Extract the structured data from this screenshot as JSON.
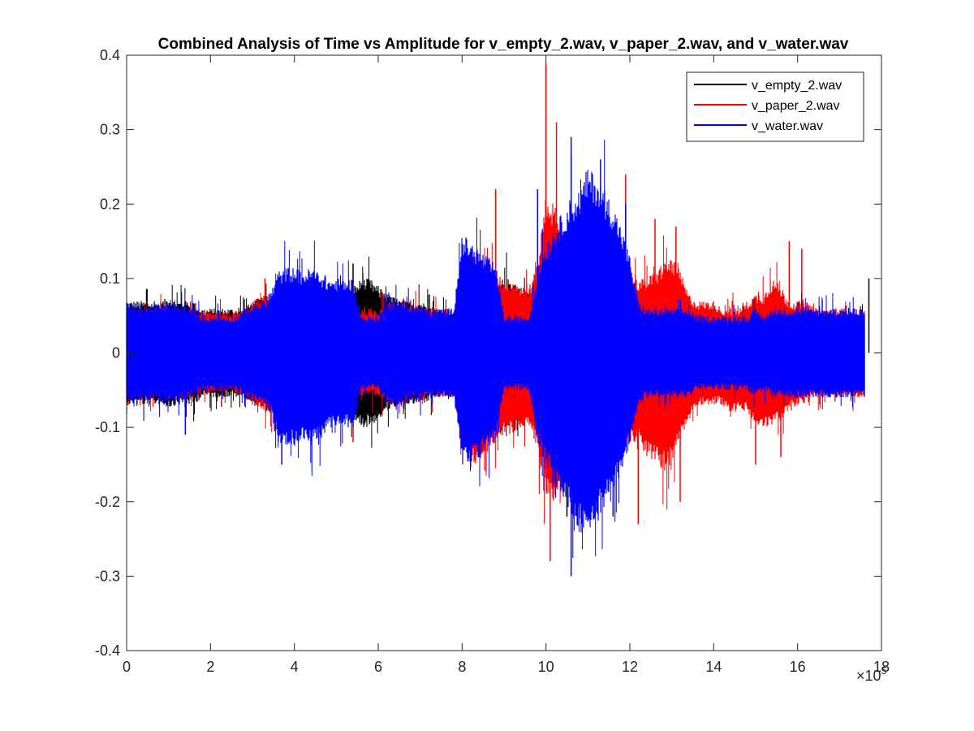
{
  "chart_data": {
    "type": "line",
    "title": "Combined Analysis of Time vs Amplitude for v_empty_2.wav, v_paper_2.wav, and v_water.wav",
    "xlabel": "",
    "ylabel": "",
    "xlim": [
      0,
      1800000
    ],
    "ylim": [
      -0.4,
      0.4
    ],
    "x_exponent_label": "×10",
    "x_exponent_power": "5",
    "x_ticks": [
      0,
      200000,
      400000,
      600000,
      800000,
      1000000,
      1200000,
      1400000,
      1600000,
      1800000
    ],
    "x_tick_labels": [
      "0",
      "2",
      "4",
      "6",
      "8",
      "10",
      "12",
      "14",
      "16",
      "18"
    ],
    "y_ticks": [
      -0.4,
      -0.3,
      -0.2,
      -0.1,
      0,
      0.1,
      0.2,
      0.3,
      0.4
    ],
    "y_tick_labels": [
      "-0.4",
      "-0.3",
      "-0.2",
      "-0.1",
      "0",
      "0.1",
      "0.2",
      "0.3",
      "0.4"
    ],
    "grid": false,
    "legend_position": "top-right",
    "x_sample_step": 20000,
    "series": [
      {
        "name": "v_empty_2.wav",
        "color": "#000000",
        "envelope": {
          "x": [
            0,
            20000,
            40000,
            60000,
            80000,
            100000,
            120000,
            140000,
            160000,
            180000,
            200000,
            220000,
            240000,
            260000,
            280000,
            300000,
            320000,
            340000,
            360000,
            380000,
            400000,
            420000,
            440000,
            460000,
            480000,
            500000,
            520000,
            540000,
            560000,
            580000,
            600000,
            620000,
            640000,
            660000,
            680000,
            700000,
            720000,
            740000,
            760000,
            780000,
            800000,
            820000,
            840000,
            860000,
            880000,
            900000,
            920000,
            940000,
            960000,
            980000,
            1000000,
            1020000,
            1040000,
            1060000,
            1080000,
            1100000,
            1120000,
            1140000,
            1160000,
            1180000,
            1200000,
            1220000,
            1240000,
            1260000,
            1280000,
            1300000,
            1320000,
            1340000,
            1360000,
            1380000,
            1400000,
            1420000,
            1440000,
            1460000,
            1480000,
            1500000,
            1520000,
            1540000,
            1560000,
            1580000,
            1600000,
            1620000,
            1640000,
            1660000,
            1680000,
            1700000,
            1720000,
            1740000,
            1760000
          ],
          "upper": [
            0.07,
            0.07,
            0.07,
            0.07,
            0.07,
            0.075,
            0.07,
            0.07,
            0.07,
            0.06,
            0.06,
            0.06,
            0.06,
            0.06,
            0.06,
            0.07,
            0.075,
            0.08,
            0.085,
            0.09,
            0.085,
            0.08,
            0.085,
            0.08,
            0.08,
            0.085,
            0.08,
            0.09,
            0.1,
            0.1,
            0.09,
            0.08,
            0.075,
            0.07,
            0.07,
            0.07,
            0.065,
            0.06,
            0.06,
            0.06,
            0.08,
            0.09,
            0.09,
            0.09,
            0.095,
            0.1,
            0.1,
            0.09,
            0.085,
            0.085,
            0.08,
            0.08,
            0.08,
            0.08,
            0.08,
            0.08,
            0.075,
            0.075,
            0.07,
            0.07,
            0.07,
            0.065,
            0.06,
            0.06,
            0.06,
            0.055,
            0.05,
            0.05,
            0.05,
            0.05,
            0.05,
            0.05,
            0.05,
            0.05,
            0.05,
            0.05,
            0.05,
            0.05,
            0.05,
            0.05,
            0.05,
            0.05,
            0.05,
            0.05,
            0.05,
            0.05,
            0.05,
            0.05,
            0.05
          ],
          "lower": [
            -0.07,
            -0.07,
            -0.07,
            -0.07,
            -0.07,
            -0.075,
            -0.07,
            -0.07,
            -0.07,
            -0.06,
            -0.06,
            -0.06,
            -0.06,
            -0.06,
            -0.06,
            -0.07,
            -0.075,
            -0.08,
            -0.085,
            -0.09,
            -0.085,
            -0.08,
            -0.085,
            -0.08,
            -0.08,
            -0.085,
            -0.085,
            -0.095,
            -0.1,
            -0.1,
            -0.09,
            -0.08,
            -0.075,
            -0.07,
            -0.07,
            -0.07,
            -0.065,
            -0.06,
            -0.06,
            -0.06,
            -0.08,
            -0.09,
            -0.09,
            -0.09,
            -0.095,
            -0.1,
            -0.1,
            -0.09,
            -0.085,
            -0.085,
            -0.08,
            -0.08,
            -0.08,
            -0.08,
            -0.08,
            -0.08,
            -0.075,
            -0.075,
            -0.07,
            -0.07,
            -0.07,
            -0.065,
            -0.06,
            -0.06,
            -0.06,
            -0.055,
            -0.05,
            -0.05,
            -0.05,
            -0.05,
            -0.05,
            -0.05,
            -0.05,
            -0.05,
            -0.05,
            -0.05,
            -0.05,
            -0.05,
            -0.05,
            -0.05,
            -0.05,
            -0.05,
            -0.05,
            -0.05,
            -0.05,
            -0.05,
            -0.05,
            -0.05,
            -0.05
          ]
        },
        "spikes": [
          [
            1000000,
            0.11
          ],
          [
            1050000,
            -0.22
          ],
          [
            540000,
            0.12
          ],
          [
            1770000,
            0.1
          ]
        ]
      },
      {
        "name": "v_paper_2.wav",
        "color": "#ff0000",
        "envelope": {
          "x": [
            0,
            20000,
            40000,
            60000,
            80000,
            100000,
            120000,
            140000,
            160000,
            180000,
            200000,
            220000,
            240000,
            260000,
            280000,
            300000,
            320000,
            340000,
            360000,
            380000,
            400000,
            420000,
            440000,
            460000,
            480000,
            500000,
            520000,
            540000,
            560000,
            580000,
            600000,
            620000,
            640000,
            660000,
            680000,
            700000,
            720000,
            740000,
            760000,
            780000,
            800000,
            820000,
            840000,
            860000,
            880000,
            900000,
            920000,
            940000,
            960000,
            980000,
            1000000,
            1020000,
            1040000,
            1060000,
            1080000,
            1100000,
            1120000,
            1140000,
            1160000,
            1180000,
            1200000,
            1220000,
            1240000,
            1260000,
            1280000,
            1300000,
            1320000,
            1340000,
            1360000,
            1380000,
            1400000,
            1420000,
            1440000,
            1460000,
            1480000,
            1500000,
            1520000,
            1540000,
            1560000,
            1580000,
            1600000,
            1620000,
            1640000,
            1660000,
            1680000,
            1700000,
            1720000,
            1740000,
            1760000
          ],
          "upper": [
            0.06,
            0.06,
            0.06,
            0.06,
            0.06,
            0.065,
            0.06,
            0.06,
            0.06,
            0.055,
            0.055,
            0.055,
            0.055,
            0.055,
            0.06,
            0.07,
            0.075,
            0.08,
            0.08,
            0.085,
            0.08,
            0.075,
            0.08,
            0.08,
            0.075,
            0.07,
            0.065,
            0.06,
            0.06,
            0.06,
            0.06,
            0.07,
            0.07,
            0.07,
            0.065,
            0.065,
            0.06,
            0.06,
            0.06,
            0.06,
            0.1,
            0.13,
            0.13,
            0.12,
            0.11,
            0.1,
            0.1,
            0.09,
            0.09,
            0.12,
            0.22,
            0.2,
            0.16,
            0.15,
            0.14,
            0.13,
            0.13,
            0.12,
            0.11,
            0.11,
            0.12,
            0.1,
            0.1,
            0.11,
            0.12,
            0.13,
            0.11,
            0.08,
            0.07,
            0.07,
            0.07,
            0.06,
            0.06,
            0.06,
            0.07,
            0.08,
            0.08,
            0.1,
            0.09,
            0.07,
            0.07,
            0.07,
            0.06,
            0.06,
            0.06,
            0.06,
            0.06,
            0.06,
            0.06
          ],
          "lower": [
            -0.06,
            -0.06,
            -0.06,
            -0.06,
            -0.06,
            -0.065,
            -0.06,
            -0.06,
            -0.06,
            -0.055,
            -0.055,
            -0.055,
            -0.055,
            -0.055,
            -0.06,
            -0.07,
            -0.075,
            -0.08,
            -0.08,
            -0.085,
            -0.08,
            -0.075,
            -0.08,
            -0.08,
            -0.075,
            -0.07,
            -0.065,
            -0.06,
            -0.06,
            -0.06,
            -0.06,
            -0.07,
            -0.07,
            -0.07,
            -0.065,
            -0.065,
            -0.06,
            -0.06,
            -0.06,
            -0.06,
            -0.11,
            -0.15,
            -0.15,
            -0.13,
            -0.12,
            -0.11,
            -0.11,
            -0.1,
            -0.1,
            -0.13,
            -0.19,
            -0.2,
            -0.17,
            -0.16,
            -0.15,
            -0.14,
            -0.14,
            -0.13,
            -0.12,
            -0.11,
            -0.12,
            -0.12,
            -0.14,
            -0.15,
            -0.16,
            -0.15,
            -0.12,
            -0.09,
            -0.07,
            -0.07,
            -0.07,
            -0.07,
            -0.08,
            -0.08,
            -0.08,
            -0.1,
            -0.1,
            -0.1,
            -0.09,
            -0.08,
            -0.07,
            -0.07,
            -0.06,
            -0.06,
            -0.06,
            -0.06,
            -0.06,
            -0.06,
            -0.06
          ]
        },
        "spikes": [
          [
            1000000,
            0.39
          ],
          [
            1010000,
            -0.28
          ],
          [
            1025000,
            0.31
          ],
          [
            880000,
            0.22
          ],
          [
            1190000,
            0.24
          ],
          [
            1220000,
            -0.23
          ],
          [
            1260000,
            0.18
          ],
          [
            1310000,
            0.17
          ],
          [
            1320000,
            -0.2
          ],
          [
            1500000,
            -0.15
          ],
          [
            1560000,
            -0.14
          ],
          [
            1610000,
            0.14
          ],
          [
            1580000,
            0.15
          ],
          [
            530000,
            0.095
          ],
          [
            540000,
            -0.12
          ],
          [
            330000,
            0.1
          ]
        ]
      },
      {
        "name": "v_water.wav",
        "color": "#0000ff",
        "envelope": {
          "x": [
            0,
            20000,
            40000,
            60000,
            80000,
            100000,
            120000,
            140000,
            160000,
            180000,
            200000,
            220000,
            240000,
            260000,
            280000,
            300000,
            320000,
            340000,
            360000,
            380000,
            400000,
            420000,
            440000,
            460000,
            480000,
            500000,
            520000,
            540000,
            560000,
            580000,
            600000,
            620000,
            640000,
            660000,
            680000,
            700000,
            720000,
            740000,
            760000,
            780000,
            800000,
            820000,
            840000,
            860000,
            880000,
            900000,
            920000,
            940000,
            960000,
            980000,
            1000000,
            1020000,
            1040000,
            1060000,
            1080000,
            1100000,
            1120000,
            1140000,
            1160000,
            1180000,
            1200000,
            1220000,
            1240000,
            1260000,
            1280000,
            1300000,
            1320000,
            1340000,
            1360000,
            1380000,
            1400000,
            1420000,
            1440000,
            1460000,
            1480000,
            1500000,
            1520000,
            1540000,
            1560000,
            1580000,
            1600000,
            1620000,
            1640000,
            1660000,
            1680000,
            1700000,
            1720000,
            1740000,
            1760000
          ],
          "upper": [
            0.07,
            0.065,
            0.065,
            0.065,
            0.065,
            0.07,
            0.065,
            0.065,
            0.06,
            0.05,
            0.05,
            0.05,
            0.05,
            0.05,
            0.06,
            0.065,
            0.07,
            0.075,
            0.11,
            0.115,
            0.115,
            0.11,
            0.115,
            0.11,
            0.1,
            0.1,
            0.1,
            0.1,
            0.05,
            0.05,
            0.05,
            0.07,
            0.07,
            0.07,
            0.065,
            0.065,
            0.06,
            0.06,
            0.06,
            0.06,
            0.16,
            0.15,
            0.14,
            0.13,
            0.12,
            0.05,
            0.05,
            0.05,
            0.05,
            0.11,
            0.15,
            0.17,
            0.19,
            0.21,
            0.22,
            0.25,
            0.24,
            0.22,
            0.2,
            0.17,
            0.13,
            0.07,
            0.06,
            0.06,
            0.06,
            0.06,
            0.06,
            0.06,
            0.05,
            0.05,
            0.05,
            0.05,
            0.05,
            0.05,
            0.05,
            0.06,
            0.05,
            0.06,
            0.06,
            0.06,
            0.06,
            0.06,
            0.06,
            0.06,
            0.06,
            0.06,
            0.06,
            0.06,
            0.06
          ],
          "lower": [
            -0.07,
            -0.065,
            -0.065,
            -0.065,
            -0.065,
            -0.07,
            -0.065,
            -0.065,
            -0.06,
            -0.05,
            -0.05,
            -0.05,
            -0.05,
            -0.05,
            -0.06,
            -0.065,
            -0.07,
            -0.075,
            -0.12,
            -0.125,
            -0.125,
            -0.12,
            -0.125,
            -0.12,
            -0.1,
            -0.1,
            -0.1,
            -0.1,
            -0.05,
            -0.05,
            -0.05,
            -0.07,
            -0.07,
            -0.07,
            -0.065,
            -0.065,
            -0.06,
            -0.06,
            -0.06,
            -0.06,
            -0.15,
            -0.15,
            -0.14,
            -0.13,
            -0.12,
            -0.05,
            -0.05,
            -0.05,
            -0.05,
            -0.12,
            -0.15,
            -0.18,
            -0.2,
            -0.22,
            -0.24,
            -0.25,
            -0.23,
            -0.21,
            -0.19,
            -0.16,
            -0.12,
            -0.07,
            -0.06,
            -0.06,
            -0.06,
            -0.06,
            -0.06,
            -0.06,
            -0.05,
            -0.05,
            -0.05,
            -0.05,
            -0.05,
            -0.05,
            -0.05,
            -0.06,
            -0.05,
            -0.06,
            -0.06,
            -0.06,
            -0.06,
            -0.06,
            -0.06,
            -0.06,
            -0.06,
            -0.06,
            -0.06,
            -0.06,
            -0.06
          ]
        },
        "spikes": [
          [
            1060000,
            0.29
          ],
          [
            1060000,
            -0.3
          ],
          [
            980000,
            0.22
          ],
          [
            1130000,
            0.26
          ],
          [
            140000,
            -0.11
          ],
          [
            370000,
            -0.15
          ],
          [
            1160000,
            -0.22
          ],
          [
            1190000,
            0.2
          ]
        ]
      }
    ],
    "legend": [
      {
        "label": "v_empty_2.wav",
        "color": "#000000"
      },
      {
        "label": "v_paper_2.wav",
        "color": "#ff0000"
      },
      {
        "label": "v_water.wav",
        "color": "#0000ff"
      }
    ]
  }
}
